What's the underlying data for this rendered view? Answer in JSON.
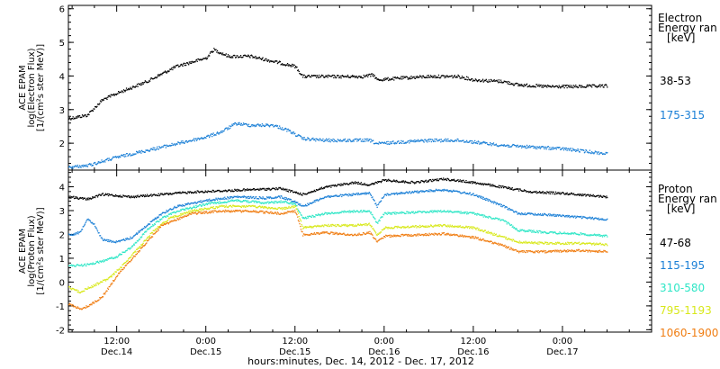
{
  "chart_data": {
    "type": "scatter",
    "xlabel": "hours:minutes, Dec. 14, 2012 - Dec. 17, 2012",
    "x_ticks": [
      {
        "top": "12:00",
        "bottom": "Dec.14",
        "t": 12
      },
      {
        "top": "0:00",
        "bottom": "Dec.15",
        "t": 24
      },
      {
        "top": "12:00",
        "bottom": "Dec.15",
        "t": 36
      },
      {
        "top": "0:00",
        "bottom": "Dec.16",
        "t": 48
      },
      {
        "top": "12:00",
        "bottom": "Dec.16",
        "t": 60
      },
      {
        "top": "0:00",
        "bottom": "Dec.17",
        "t": 72
      }
    ],
    "xlim_hours": [
      5.5,
      84
    ],
    "panels": [
      {
        "ylabel_lines": [
          "ACE EPAM",
          "log(Electron Flux)",
          "[1/(cm²s ster MeV)]"
        ],
        "ylim": [
          1.2,
          6.1
        ],
        "yticks": [
          2,
          3,
          4,
          5,
          6
        ],
        "legend_title_lines": [
          "Electron",
          "Energy ran",
          "[keV]"
        ],
        "series": [
          {
            "name": "38-53",
            "color": "#000000",
            "points": [
              [
                5.5,
                2.75
              ],
              [
                8,
                2.85
              ],
              [
                10,
                3.3
              ],
              [
                12,
                3.5
              ],
              [
                16,
                3.85
              ],
              [
                20,
                4.3
              ],
              [
                24,
                4.55
              ],
              [
                25,
                4.8
              ],
              [
                27,
                4.6
              ],
              [
                30,
                4.6
              ],
              [
                34,
                4.4
              ],
              [
                36,
                4.3
              ],
              [
                37,
                4.0
              ],
              [
                40,
                4.0
              ],
              [
                45,
                4.0
              ],
              [
                46.5,
                4.05
              ],
              [
                47,
                3.9
              ],
              [
                50,
                3.95
              ],
              [
                54,
                4.0
              ],
              [
                58,
                4.0
              ],
              [
                60,
                3.9
              ],
              [
                64,
                3.85
              ],
              [
                66,
                3.75
              ],
              [
                70,
                3.7
              ],
              [
                74,
                3.7
              ],
              [
                78,
                3.72
              ]
            ]
          },
          {
            "name": "175-315",
            "color": "#1a7fd6",
            "points": [
              [
                5.5,
                1.3
              ],
              [
                8,
                1.35
              ],
              [
                12,
                1.6
              ],
              [
                16,
                1.8
              ],
              [
                20,
                2.0
              ],
              [
                24,
                2.2
              ],
              [
                26,
                2.35
              ],
              [
                28,
                2.6
              ],
              [
                30,
                2.55
              ],
              [
                33,
                2.55
              ],
              [
                35,
                2.4
              ],
              [
                37,
                2.15
              ],
              [
                40,
                2.1
              ],
              [
                46,
                2.1
              ],
              [
                47,
                2.0
              ],
              [
                50,
                2.05
              ],
              [
                54,
                2.1
              ],
              [
                58,
                2.1
              ],
              [
                60,
                2.05
              ],
              [
                64,
                1.95
              ],
              [
                68,
                1.9
              ],
              [
                72,
                1.85
              ],
              [
                76,
                1.75
              ],
              [
                78,
                1.7
              ]
            ]
          }
        ]
      },
      {
        "ylabel_lines": [
          "ACE EPAM",
          "log(Proton Flux)",
          "[1/(cm²s ster MeV)]"
        ],
        "ylim": [
          -2.1,
          4.7
        ],
        "yticks": [
          -2,
          -1,
          0,
          1,
          2,
          3,
          4
        ],
        "legend_title_lines": [
          "Proton",
          "Energy ran",
          "[keV]"
        ],
        "series": [
          {
            "name": "47-68",
            "color": "#000000",
            "points": [
              [
                5.5,
                3.6
              ],
              [
                8,
                3.5
              ],
              [
                10,
                3.7
              ],
              [
                14,
                3.6
              ],
              [
                18,
                3.7
              ],
              [
                22,
                3.8
              ],
              [
                26,
                3.85
              ],
              [
                30,
                3.9
              ],
              [
                34,
                3.95
              ],
              [
                37,
                3.7
              ],
              [
                40,
                4.0
              ],
              [
                44,
                4.2
              ],
              [
                46,
                4.1
              ],
              [
                48,
                4.3
              ],
              [
                52,
                4.2
              ],
              [
                56,
                4.35
              ],
              [
                60,
                4.2
              ],
              [
                64,
                4.0
              ],
              [
                68,
                3.8
              ],
              [
                72,
                3.75
              ],
              [
                76,
                3.65
              ],
              [
                78,
                3.6
              ]
            ]
          },
          {
            "name": "115-195",
            "color": "#1a7fd6",
            "points": [
              [
                5.5,
                2.0
              ],
              [
                7,
                2.1
              ],
              [
                8,
                2.7
              ],
              [
                9,
                2.4
              ],
              [
                10,
                1.8
              ],
              [
                12,
                1.7
              ],
              [
                14,
                1.9
              ],
              [
                16,
                2.4
              ],
              [
                18,
                2.9
              ],
              [
                20,
                3.2
              ],
              [
                24,
                3.45
              ],
              [
                28,
                3.6
              ],
              [
                32,
                3.55
              ],
              [
                34,
                3.6
              ],
              [
                36,
                3.4
              ],
              [
                37,
                3.2
              ],
              [
                40,
                3.6
              ],
              [
                44,
                3.7
              ],
              [
                46,
                3.75
              ],
              [
                47,
                3.2
              ],
              [
                48,
                3.7
              ],
              [
                52,
                3.8
              ],
              [
                56,
                3.9
              ],
              [
                60,
                3.7
              ],
              [
                64,
                3.2
              ],
              [
                66,
                2.9
              ],
              [
                70,
                2.85
              ],
              [
                74,
                2.75
              ],
              [
                78,
                2.65
              ]
            ]
          },
          {
            "name": "310-580",
            "color": "#2ee6c6",
            "points": [
              [
                5.5,
                0.7
              ],
              [
                8,
                0.75
              ],
              [
                10,
                0.9
              ],
              [
                12,
                1.1
              ],
              [
                14,
                1.5
              ],
              [
                16,
                2.2
              ],
              [
                18,
                2.7
              ],
              [
                20,
                3.0
              ],
              [
                24,
                3.3
              ],
              [
                28,
                3.45
              ],
              [
                32,
                3.35
              ],
              [
                34,
                3.4
              ],
              [
                36,
                3.3
              ],
              [
                37,
                2.7
              ],
              [
                40,
                2.9
              ],
              [
                44,
                3.0
              ],
              [
                46,
                3.0
              ],
              [
                47,
                2.5
              ],
              [
                48,
                2.9
              ],
              [
                52,
                2.95
              ],
              [
                56,
                3.0
              ],
              [
                60,
                2.9
              ],
              [
                64,
                2.6
              ],
              [
                66,
                2.2
              ],
              [
                70,
                2.1
              ],
              [
                74,
                2.05
              ],
              [
                78,
                1.95
              ]
            ]
          },
          {
            "name": "795-1193",
            "color": "#d8e81a",
            "points": [
              [
                5.5,
                -0.2
              ],
              [
                7,
                -0.4
              ],
              [
                9,
                -0.1
              ],
              [
                11,
                0.2
              ],
              [
                13,
                0.8
              ],
              [
                15,
                1.5
              ],
              [
                17,
                2.2
              ],
              [
                19,
                2.7
              ],
              [
                22,
                3.0
              ],
              [
                26,
                3.2
              ],
              [
                30,
                3.2
              ],
              [
                34,
                3.1
              ],
              [
                36,
                3.2
              ],
              [
                37,
                2.3
              ],
              [
                40,
                2.4
              ],
              [
                44,
                2.4
              ],
              [
                46,
                2.45
              ],
              [
                47,
                2.0
              ],
              [
                48,
                2.3
              ],
              [
                52,
                2.35
              ],
              [
                56,
                2.4
              ],
              [
                60,
                2.3
              ],
              [
                64,
                1.9
              ],
              [
                66,
                1.7
              ],
              [
                70,
                1.65
              ],
              [
                74,
                1.65
              ],
              [
                78,
                1.6
              ]
            ]
          },
          {
            "name": "1060-1900",
            "color": "#f07d12",
            "points": [
              [
                5.5,
                -0.9
              ],
              [
                7,
                -1.1
              ],
              [
                8,
                -1.0
              ],
              [
                10,
                -0.6
              ],
              [
                12,
                0.3
              ],
              [
                14,
                1.0
              ],
              [
                16,
                1.7
              ],
              [
                18,
                2.4
              ],
              [
                22,
                2.9
              ],
              [
                26,
                3.0
              ],
              [
                30,
                3.0
              ],
              [
                34,
                2.9
              ],
              [
                36,
                3.0
              ],
              [
                37,
                2.0
              ],
              [
                40,
                2.1
              ],
              [
                44,
                2.0
              ],
              [
                46,
                2.1
              ],
              [
                47,
                1.7
              ],
              [
                48,
                1.95
              ],
              [
                52,
                2.0
              ],
              [
                56,
                2.05
              ],
              [
                60,
                1.9
              ],
              [
                64,
                1.55
              ],
              [
                66,
                1.3
              ],
              [
                70,
                1.3
              ],
              [
                74,
                1.35
              ],
              [
                78,
                1.3
              ]
            ]
          }
        ]
      }
    ]
  }
}
